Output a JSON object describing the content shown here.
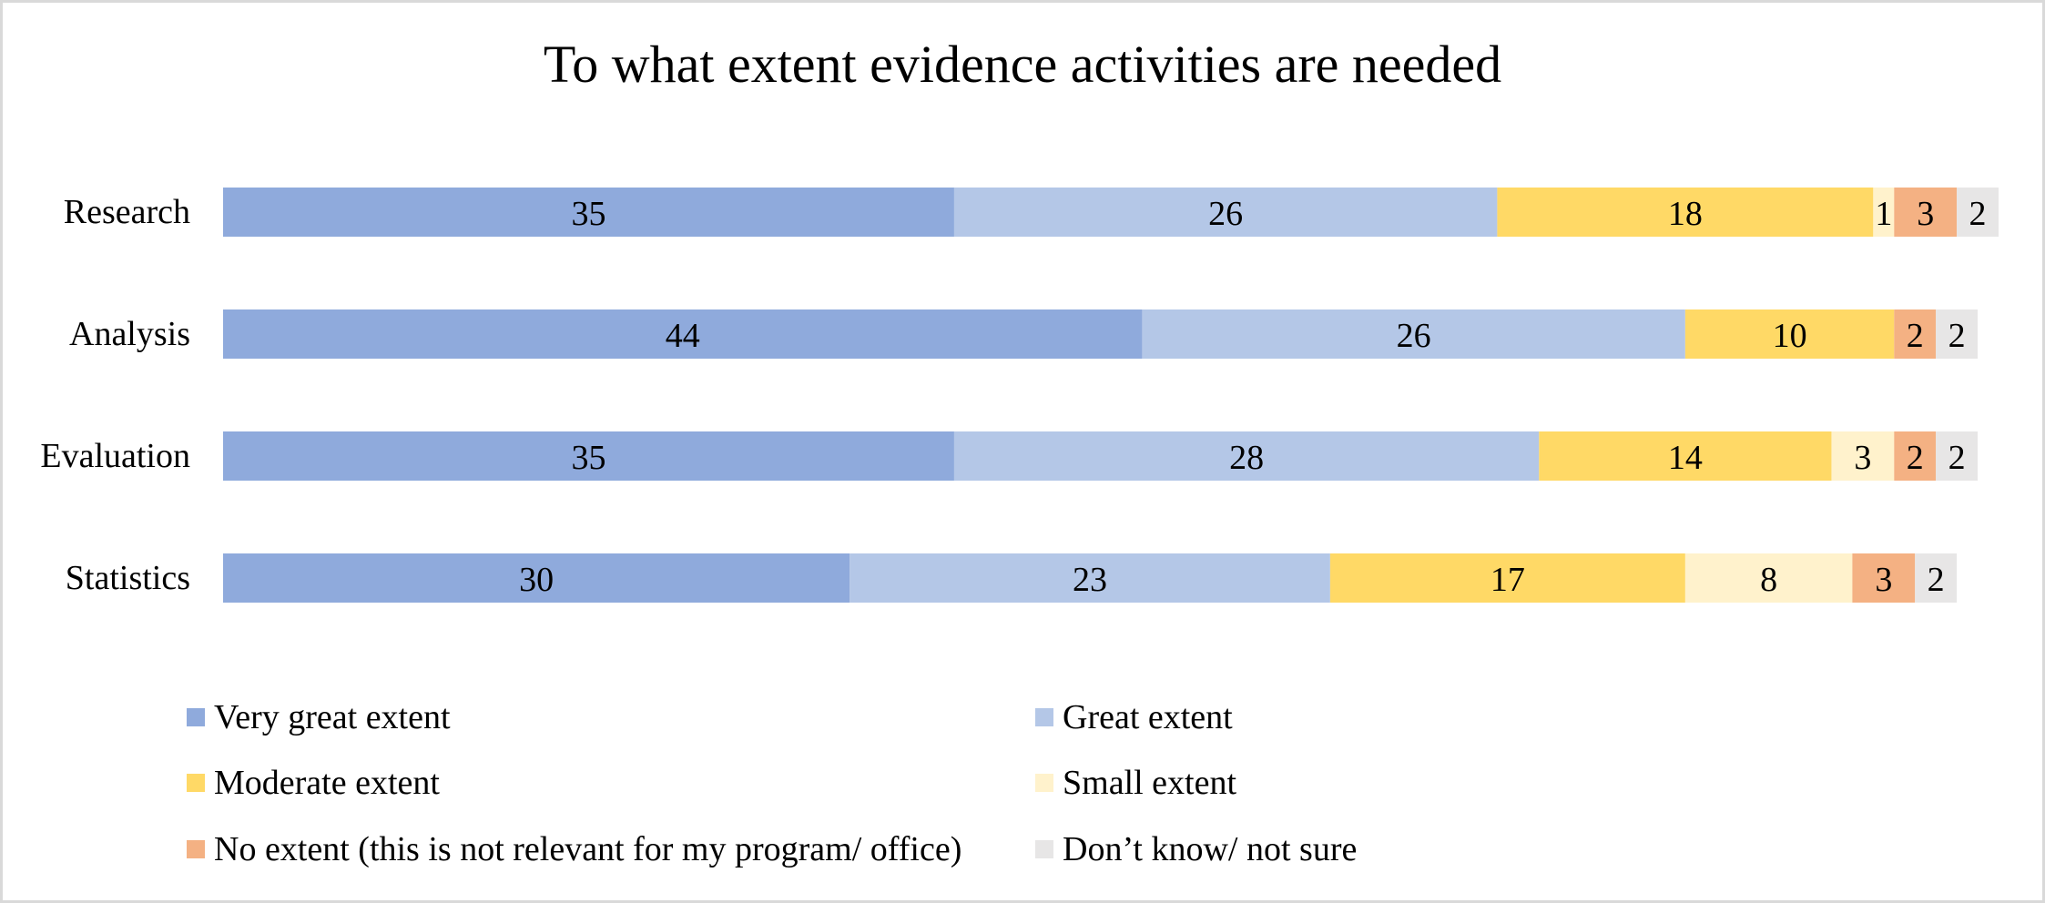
{
  "chart_data": {
    "type": "bar",
    "orientation": "horizontal",
    "stacked": true,
    "title": "To what extent evidence activities are needed",
    "categories": [
      "Research",
      "Analysis",
      "Evaluation",
      "Statistics"
    ],
    "series": [
      {
        "name": "Very great extent",
        "color": "#8faadc",
        "values": [
          35,
          44,
          35,
          30
        ]
      },
      {
        "name": "Great extent",
        "color": "#b4c7e7",
        "values": [
          26,
          26,
          28,
          23
        ]
      },
      {
        "name": "Moderate extent",
        "color": "#ffd966",
        "values": [
          18,
          10,
          14,
          17
        ]
      },
      {
        "name": "Small extent",
        "color": "#fff2cc",
        "values": [
          1,
          0,
          3,
          8
        ]
      },
      {
        "name": "No extent (this is not relevant for my program/ office)",
        "color": "#f4b183",
        "values": [
          3,
          2,
          2,
          3
        ]
      },
      {
        "name": "Don’t know/ not sure",
        "color": "#e7e6e6",
        "values": [
          2,
          2,
          2,
          2
        ]
      }
    ],
    "legend_position": "bottom",
    "grid": false
  }
}
